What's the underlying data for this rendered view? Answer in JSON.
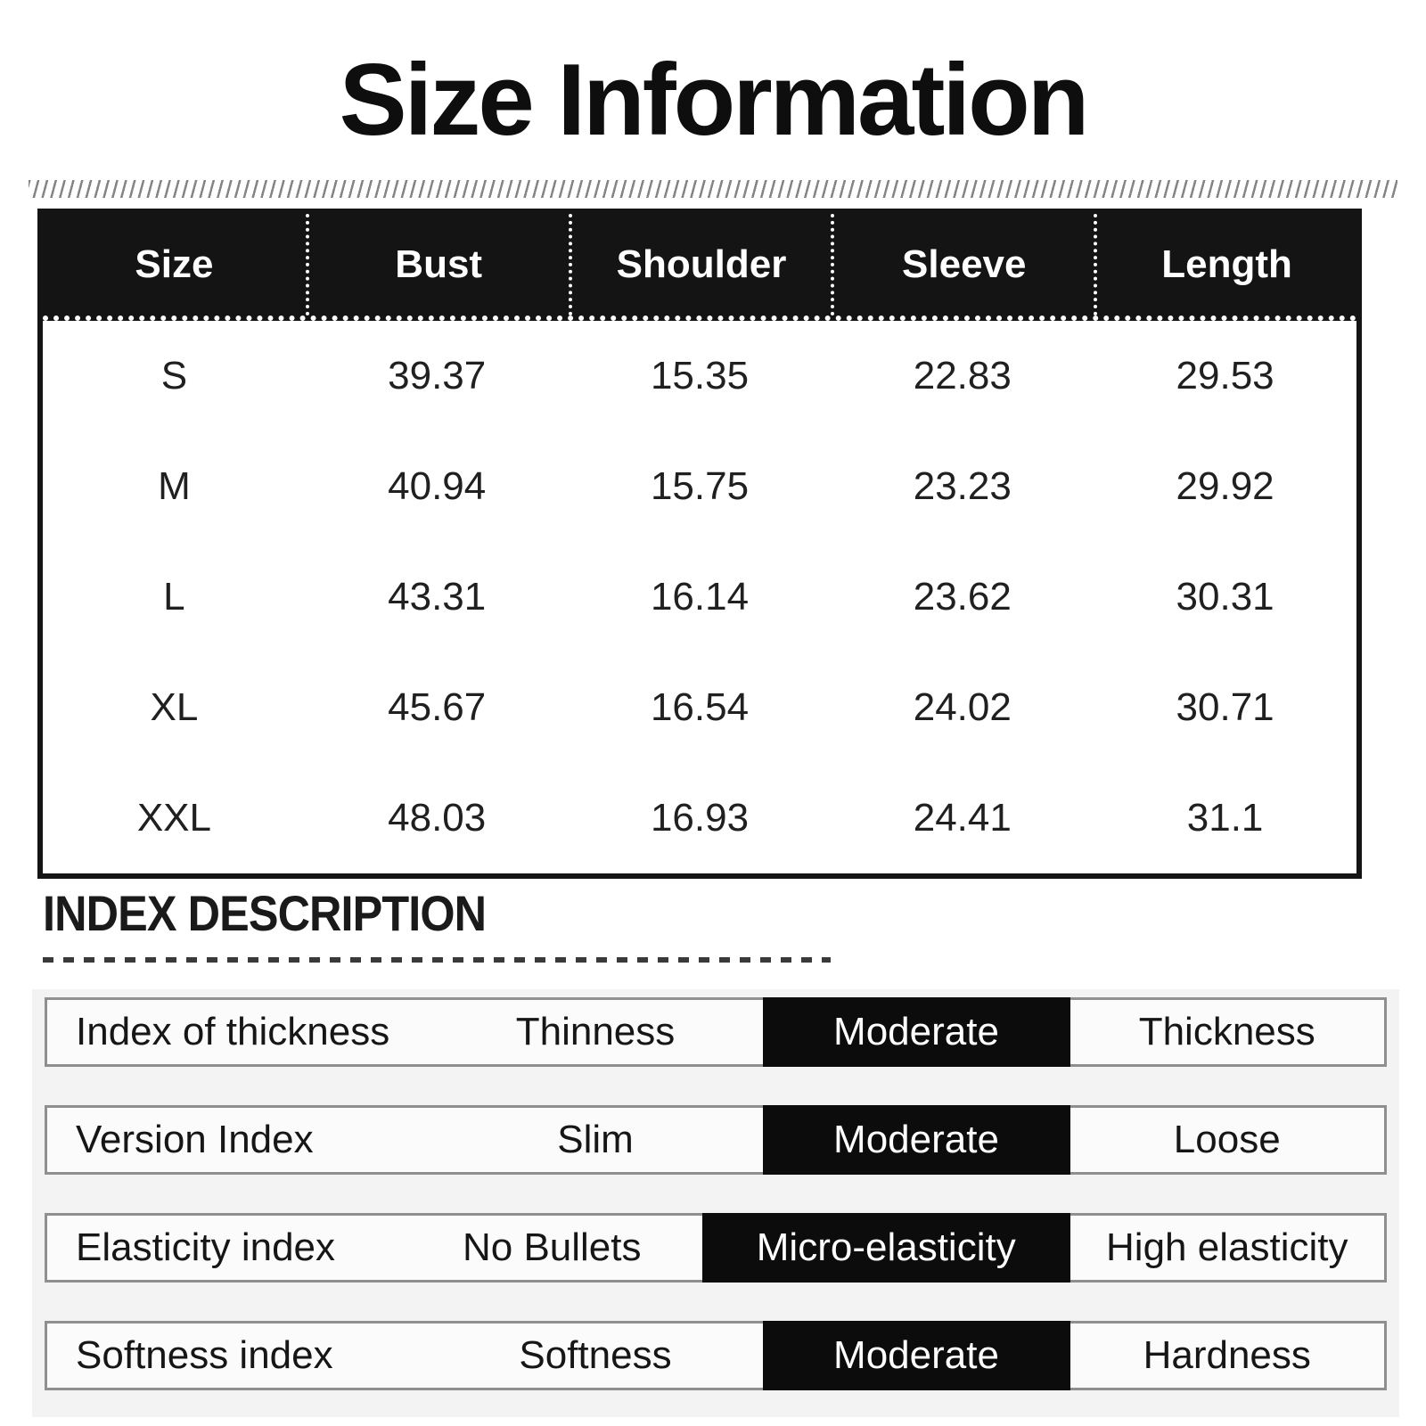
{
  "title": "Size Information",
  "size_table": {
    "columns": [
      "Size",
      "Bust",
      "Shoulder",
      "Sleeve",
      "Length"
    ],
    "rows": [
      {
        "size": "S",
        "values": [
          "39.37",
          "15.35",
          "22.83",
          "29.53"
        ]
      },
      {
        "size": "M",
        "values": [
          "40.94",
          "15.75",
          "23.23",
          "29.92"
        ]
      },
      {
        "size": "L",
        "values": [
          "43.31",
          "16.14",
          "23.62",
          "30.31"
        ]
      },
      {
        "size": "XL",
        "values": [
          "45.67",
          "16.54",
          "24.02",
          "30.71"
        ]
      },
      {
        "size": "XXL",
        "values": [
          "48.03",
          "16.93",
          "24.41",
          "31.1"
        ]
      }
    ]
  },
  "index_description": {
    "heading": "INDEX DESCRIPTION",
    "rows": [
      {
        "label": "Index of thickness",
        "options": [
          "Thinness",
          "Moderate",
          "Thickness"
        ],
        "selected": 1
      },
      {
        "label": "Version Index",
        "options": [
          "Slim",
          "Moderate",
          "Loose"
        ],
        "selected": 1
      },
      {
        "label": "Elasticity index",
        "options": [
          "No Bullets",
          "Micro-elasticity",
          "High elasticity"
        ],
        "selected": 1
      },
      {
        "label": "Softness index",
        "options": [
          "Softness",
          "Moderate",
          "Hardness"
        ],
        "selected": 1
      }
    ]
  },
  "colors": {
    "table_header_bg": "#141414",
    "selected_option_bg": "#0c0c0c",
    "index_section_bg": "#f3f3f3",
    "text": "#1c1c1c"
  },
  "chart_data": {
    "type": "table",
    "title": "Size Information",
    "columns": [
      "Size",
      "Bust",
      "Shoulder",
      "Sleeve",
      "Length"
    ],
    "rows": [
      [
        "S",
        39.37,
        15.35,
        22.83,
        29.53
      ],
      [
        "M",
        40.94,
        15.75,
        23.23,
        29.92
      ],
      [
        "L",
        43.31,
        16.14,
        23.62,
        30.31
      ],
      [
        "XL",
        45.67,
        16.54,
        24.02,
        30.71
      ],
      [
        "XXL",
        48.03,
        16.93,
        24.41,
        31.1
      ]
    ],
    "index_table": {
      "rows": [
        [
          "Index of thickness",
          "Thinness",
          "Moderate",
          "Thickness"
        ],
        [
          "Version Index",
          "Slim",
          "Moderate",
          "Loose"
        ],
        [
          "Elasticity index",
          "No Bullets",
          "Micro-elasticity",
          "High elasticity"
        ],
        [
          "Softness index",
          "Softness",
          "Moderate",
          "Hardness"
        ]
      ],
      "highlighted_column_index": 2
    }
  }
}
